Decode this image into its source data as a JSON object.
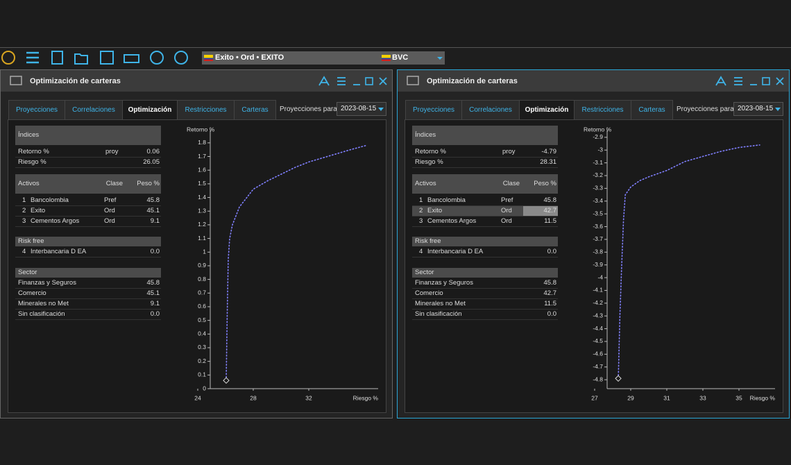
{
  "toolbar": {
    "instrument": "Exito • Ord • EXITO",
    "market": "BVC"
  },
  "panels": [
    {
      "title": "Optimización de carteras",
      "tabs": [
        "Proyecciones",
        "Correlaciones",
        "Optimización",
        "Restricciones",
        "Carteras"
      ],
      "active_tab": 2,
      "projection_label": "Proyecciones para:",
      "projection_date": "2023-08-15",
      "indices": {
        "header": "Índices",
        "rows": [
          {
            "label": "Retorno %",
            "tag": "proy",
            "value": "0.06"
          },
          {
            "label": "Riesgo %",
            "value": "26.05"
          }
        ]
      },
      "activos": {
        "headers": [
          "Activos",
          "Clase",
          "Peso %"
        ],
        "rows": [
          {
            "n": "1",
            "name": "Bancolombia",
            "clase": "Pref",
            "peso": "45.8"
          },
          {
            "n": "2",
            "name": "Exito",
            "clase": "Ord",
            "peso": "45.1"
          },
          {
            "n": "3",
            "name": "Cementos Argos",
            "clase": "Ord",
            "peso": "9.1"
          }
        ]
      },
      "risk_free": {
        "header": "Risk free",
        "rows": [
          {
            "n": "4",
            "name": "Interbancaria D EA",
            "peso": "0.0"
          }
        ]
      },
      "sector": {
        "header": "Sector",
        "rows": [
          {
            "label": "Finanzas y Seguros",
            "value": "45.8"
          },
          {
            "label": "Comercio",
            "value": "45.1"
          },
          {
            "label": "Minerales no Met",
            "value": "9.1"
          },
          {
            "label": "Sin clasificación",
            "value": "0.0"
          }
        ]
      }
    },
    {
      "title": "Optimización de carteras",
      "tabs": [
        "Proyecciones",
        "Correlaciones",
        "Optimización",
        "Restricciones",
        "Carteras"
      ],
      "active_tab": 2,
      "projection_label": "Proyecciones para:",
      "projection_date": "2023-08-15",
      "indices": {
        "header": "Índices",
        "rows": [
          {
            "label": "Retorno %",
            "tag": "proy",
            "value": "-4.79"
          },
          {
            "label": "Riesgo %",
            "value": "28.31"
          }
        ]
      },
      "activos": {
        "headers": [
          "Activos",
          "Clase",
          "Peso %"
        ],
        "rows": [
          {
            "n": "1",
            "name": "Bancolombia",
            "clase": "Pref",
            "peso": "45.8"
          },
          {
            "n": "2",
            "name": "Exito",
            "clase": "Ord",
            "peso": "42.7",
            "selected": true
          },
          {
            "n": "3",
            "name": "Cementos Argos",
            "clase": "Ord",
            "peso": "11.5"
          }
        ]
      },
      "risk_free": {
        "header": "Risk free",
        "rows": [
          {
            "n": "4",
            "name": "Interbancaria D EA",
            "peso": "0.0"
          }
        ]
      },
      "sector": {
        "header": "Sector",
        "rows": [
          {
            "label": "Finanzas y Seguros",
            "value": "45.8"
          },
          {
            "label": "Comercio",
            "value": "42.7"
          },
          {
            "label": "Minerales no Met",
            "value": "11.5"
          },
          {
            "label": "Sin clasificación",
            "value": "0.0"
          }
        ]
      }
    }
  ],
  "chart_data": [
    {
      "type": "line",
      "y_label": "Retorno %",
      "x_label": "Riesgo %",
      "color": "#8080ff",
      "xlim": [
        24,
        37
      ],
      "ylim": [
        0,
        1.85
      ],
      "xticks": [
        24,
        28,
        32
      ],
      "yticks": [
        0,
        0.1,
        0.2,
        0.3,
        0.4,
        0.5,
        0.6,
        0.7,
        0.8,
        0.9,
        1,
        1.1,
        1.2,
        1.3,
        1.4,
        1.5,
        1.6,
        1.7,
        1.8
      ],
      "x": [
        26.05,
        26.1,
        26.15,
        26.2,
        26.3,
        26.5,
        27,
        28,
        29,
        30,
        31,
        32,
        33,
        34,
        35,
        36.1
      ],
      "y": [
        0.06,
        0.4,
        0.7,
        0.95,
        1.1,
        1.2,
        1.33,
        1.46,
        1.52,
        1.57,
        1.62,
        1.66,
        1.69,
        1.72,
        1.75,
        1.78
      ],
      "current": {
        "x": 26.05,
        "y": 0.06
      }
    },
    {
      "type": "line",
      "y_label": "Retorno %",
      "x_label": "Riesgo %",
      "color": "#8080ff",
      "xlim": [
        27,
        37
      ],
      "ylim": [
        -4.87,
        -2.89
      ],
      "xticks": [
        27,
        29,
        31,
        33,
        35
      ],
      "yticks": [
        -4.8,
        -4.7,
        -4.6,
        -4.5,
        -4.4,
        -4.3,
        -4.2,
        -4.1,
        -4,
        -3.9,
        -3.8,
        -3.7,
        -3.6,
        -3.5,
        -3.4,
        -3.3,
        -3.2,
        -3.1,
        -3,
        -2.9
      ],
      "x": [
        28.31,
        28.4,
        28.5,
        28.6,
        28.7,
        29,
        29.5,
        30,
        31,
        32,
        33,
        34,
        35,
        36.15
      ],
      "y": [
        -4.79,
        -4.3,
        -3.9,
        -3.55,
        -3.35,
        -3.29,
        -3.24,
        -3.21,
        -3.16,
        -3.09,
        -3.05,
        -3.01,
        -2.98,
        -2.96
      ],
      "current": {
        "x": 28.31,
        "y": -4.79
      }
    }
  ]
}
